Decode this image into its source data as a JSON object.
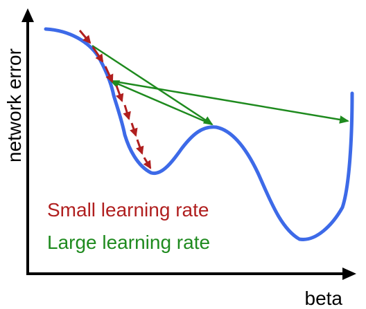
{
  "axes": {
    "y_label": "network error",
    "x_label": "beta"
  },
  "legend": {
    "small": {
      "label": "Small learning rate",
      "color": "#b01f1f"
    },
    "large": {
      "label": "Large learning rate",
      "color": "#1e8a1e"
    }
  },
  "curve": {
    "color": "#3d6ae8"
  },
  "axis_color": "#000000"
}
